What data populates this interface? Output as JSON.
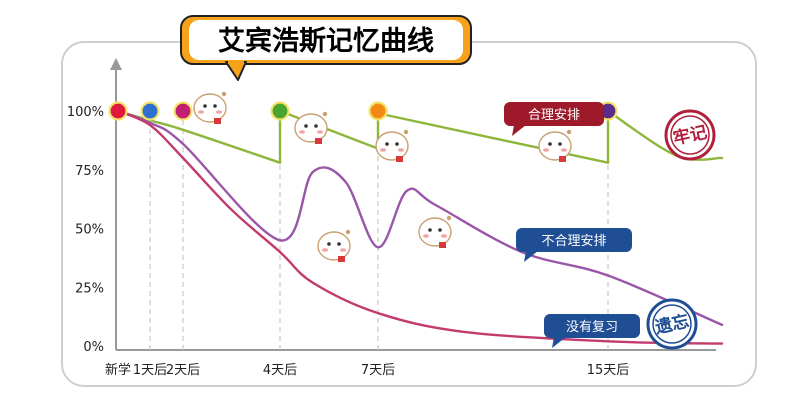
{
  "chart_data": {
    "type": "line",
    "title": "艾宾浩斯记忆曲线",
    "x_ticks": [
      {
        "label": "新学",
        "day": 0
      },
      {
        "label": "1天后",
        "day": 1
      },
      {
        "label": "2天后",
        "day": 2
      },
      {
        "label": "4天后",
        "day": 4
      },
      {
        "label": "7天后",
        "day": 7
      },
      {
        "label": "15天后",
        "day": 15
      }
    ],
    "y_ticks": [
      "0%",
      "25%",
      "50%",
      "75%",
      "100%"
    ],
    "ylim": [
      0,
      100
    ],
    "review_points": [
      {
        "day": 0,
        "value": 100,
        "color": "#e0183c"
      },
      {
        "day": 1,
        "value": 100,
        "color": "#2f6fd0"
      },
      {
        "day": 2,
        "value": 100,
        "color": "#c21f73"
      },
      {
        "day": 4,
        "value": 100,
        "color": "#4aa52e"
      },
      {
        "day": 7,
        "value": 100,
        "color": "#f08a12"
      },
      {
        "day": 15,
        "value": 100,
        "color": "#5b2d8a"
      }
    ],
    "series": [
      {
        "name": "合理安排",
        "color": "#8fb63c",
        "label_color": "#9e1a2a",
        "points": [
          [
            0,
            100
          ],
          [
            1,
            96
          ],
          [
            2,
            92
          ],
          [
            4,
            78
          ],
          [
            4,
            100
          ],
          [
            7,
            84
          ],
          [
            7,
            99
          ],
          [
            15,
            78
          ],
          [
            15,
            100
          ],
          [
            18,
            81
          ],
          [
            20,
            80
          ]
        ]
      },
      {
        "name": "不合理安排",
        "color": "#9a56a8",
        "label_color": "#1f4e94",
        "points": [
          [
            0,
            100
          ],
          [
            1,
            95
          ],
          [
            2,
            86
          ],
          [
            4,
            45
          ],
          [
            5,
            74
          ],
          [
            6,
            70
          ],
          [
            7,
            42
          ],
          [
            8,
            66
          ],
          [
            9,
            60
          ],
          [
            12,
            40
          ],
          [
            15,
            30
          ],
          [
            20,
            9
          ]
        ]
      },
      {
        "name": "没有复习",
        "color": "#c23a6e",
        "label_color": "#1f4e94",
        "points": [
          [
            0,
            100
          ],
          [
            1,
            94
          ],
          [
            2,
            80
          ],
          [
            3,
            58
          ],
          [
            4,
            40
          ],
          [
            5,
            27
          ],
          [
            7,
            14
          ],
          [
            10,
            6
          ],
          [
            15,
            2
          ],
          [
            20,
            1
          ]
        ]
      }
    ],
    "stamps": [
      {
        "text": "牢记",
        "color": "#b01f3c"
      },
      {
        "text": "遗忘",
        "color": "#1f4e94"
      }
    ]
  }
}
